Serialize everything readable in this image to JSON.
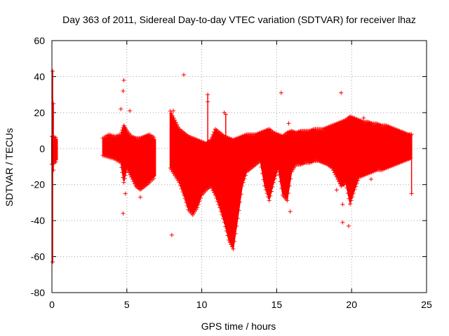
{
  "chart_data": {
    "type": "scatter",
    "title": "Day 363 of 2011, Sidereal Day-to-day VTEC variation (SDTVAR) for receiver lhaz",
    "xlabel": "GPS time / hours",
    "ylabel": "SDTVAR / TECUs",
    "xlim": [
      0,
      25
    ],
    "ylim": [
      -80,
      60
    ],
    "xticks": [
      0,
      5,
      10,
      15,
      20,
      25
    ],
    "yticks": [
      -80,
      -60,
      -40,
      -20,
      0,
      20,
      40,
      60
    ],
    "grid": true,
    "marker": "+",
    "series": [
      {
        "name": "SDTVAR",
        "color": "#ff0000",
        "bands": [
          {
            "x": [
              0.0,
              0.35
            ],
            "low": [
              -8,
              -6
            ],
            "high": [
              6,
              5
            ]
          },
          {
            "x": [
              3.4,
              3.8,
              4.2,
              4.6,
              4.8,
              5.0,
              5.3,
              5.6,
              5.9,
              6.2,
              6.5,
              6.9
            ],
            "low": [
              -3,
              -4,
              -5,
              -7,
              -18,
              -10,
              -15,
              -20,
              -22,
              -20,
              -18,
              -15
            ],
            "high": [
              5,
              7,
              6,
              7,
              12,
              9,
              6,
              5,
              5,
              6,
              7,
              5
            ]
          },
          {
            "x": [
              7.9,
              8.2,
              8.5,
              8.8,
              9.1,
              9.4,
              9.7,
              10.0,
              10.3,
              10.6,
              10.9,
              11.2,
              11.5,
              11.8,
              12.1,
              12.4,
              12.7,
              13.0,
              13.3,
              13.6,
              13.9,
              14.2,
              14.5,
              14.8,
              15.1,
              15.4,
              15.7,
              16.0,
              16.3,
              16.6,
              16.9,
              17.2,
              17.5,
              17.8,
              18.1,
              18.4,
              18.7,
              19.0,
              19.3,
              19.6,
              19.9,
              20.2,
              20.5,
              20.8,
              21.1,
              21.4,
              21.7,
              22.0,
              22.3,
              22.6,
              22.9,
              23.2,
              23.5,
              23.8,
              24.0
            ],
            "low": [
              -10,
              -14,
              -18,
              -25,
              -33,
              -36,
              -32,
              -25,
              -22,
              -20,
              -25,
              -32,
              -40,
              -50,
              -55,
              -38,
              -20,
              -12,
              -10,
              -8,
              -6,
              -20,
              -28,
              -18,
              -10,
              -25,
              -28,
              -12,
              -8,
              -8,
              -7,
              -7,
              -6,
              -6,
              -7,
              -8,
              -10,
              -15,
              -20,
              -18,
              -30,
              -22,
              -15,
              -14,
              -13,
              -12,
              -11,
              -11,
              -10,
              -9,
              -8,
              -7,
              -6,
              -5,
              -4
            ],
            "high": [
              20,
              15,
              10,
              8,
              6,
              5,
              4,
              3,
              2,
              4,
              10,
              8,
              6,
              5,
              4,
              5,
              6,
              7,
              7,
              7,
              8,
              9,
              10,
              8,
              7,
              6,
              8,
              9,
              8,
              9,
              9,
              9,
              10,
              10,
              10,
              11,
              12,
              13,
              14,
              15,
              17,
              16,
              15,
              14,
              14,
              13,
              13,
              12,
              12,
              11,
              10,
              9,
              8,
              7,
              6
            ]
          }
        ],
        "spikes": [
          {
            "x": 0.05,
            "low": -63,
            "high": 43
          },
          {
            "x": 0.1,
            "low": -12,
            "high": 25
          },
          {
            "x": 10.4,
            "low": -5,
            "high": 30
          },
          {
            "x": 11.6,
            "low": -5,
            "high": 19
          },
          {
            "x": 24.0,
            "low": -25,
            "high": 8
          }
        ],
        "outliers": [
          {
            "x": 4.6,
            "y": 22
          },
          {
            "x": 4.75,
            "y": 32
          },
          {
            "x": 4.8,
            "y": 38
          },
          {
            "x": 4.75,
            "y": -36
          },
          {
            "x": 4.9,
            "y": -25
          },
          {
            "x": 5.2,
            "y": 21
          },
          {
            "x": 5.9,
            "y": -27
          },
          {
            "x": 8.0,
            "y": -48
          },
          {
            "x": 8.1,
            "y": 21
          },
          {
            "x": 8.8,
            "y": 41
          },
          {
            "x": 10.4,
            "y": 26
          },
          {
            "x": 11.5,
            "y": 20
          },
          {
            "x": 15.3,
            "y": 31
          },
          {
            "x": 15.9,
            "y": -35
          },
          {
            "x": 15.8,
            "y": 14
          },
          {
            "x": 19.0,
            "y": -23
          },
          {
            "x": 19.3,
            "y": 31
          },
          {
            "x": 19.4,
            "y": -41
          },
          {
            "x": 19.4,
            "y": -31
          },
          {
            "x": 19.8,
            "y": -43
          },
          {
            "x": 19.5,
            "y": -20
          },
          {
            "x": 20.8,
            "y": 17
          },
          {
            "x": 21.3,
            "y": -17
          },
          {
            "x": 23.9,
            "y": 8
          }
        ]
      }
    ]
  }
}
